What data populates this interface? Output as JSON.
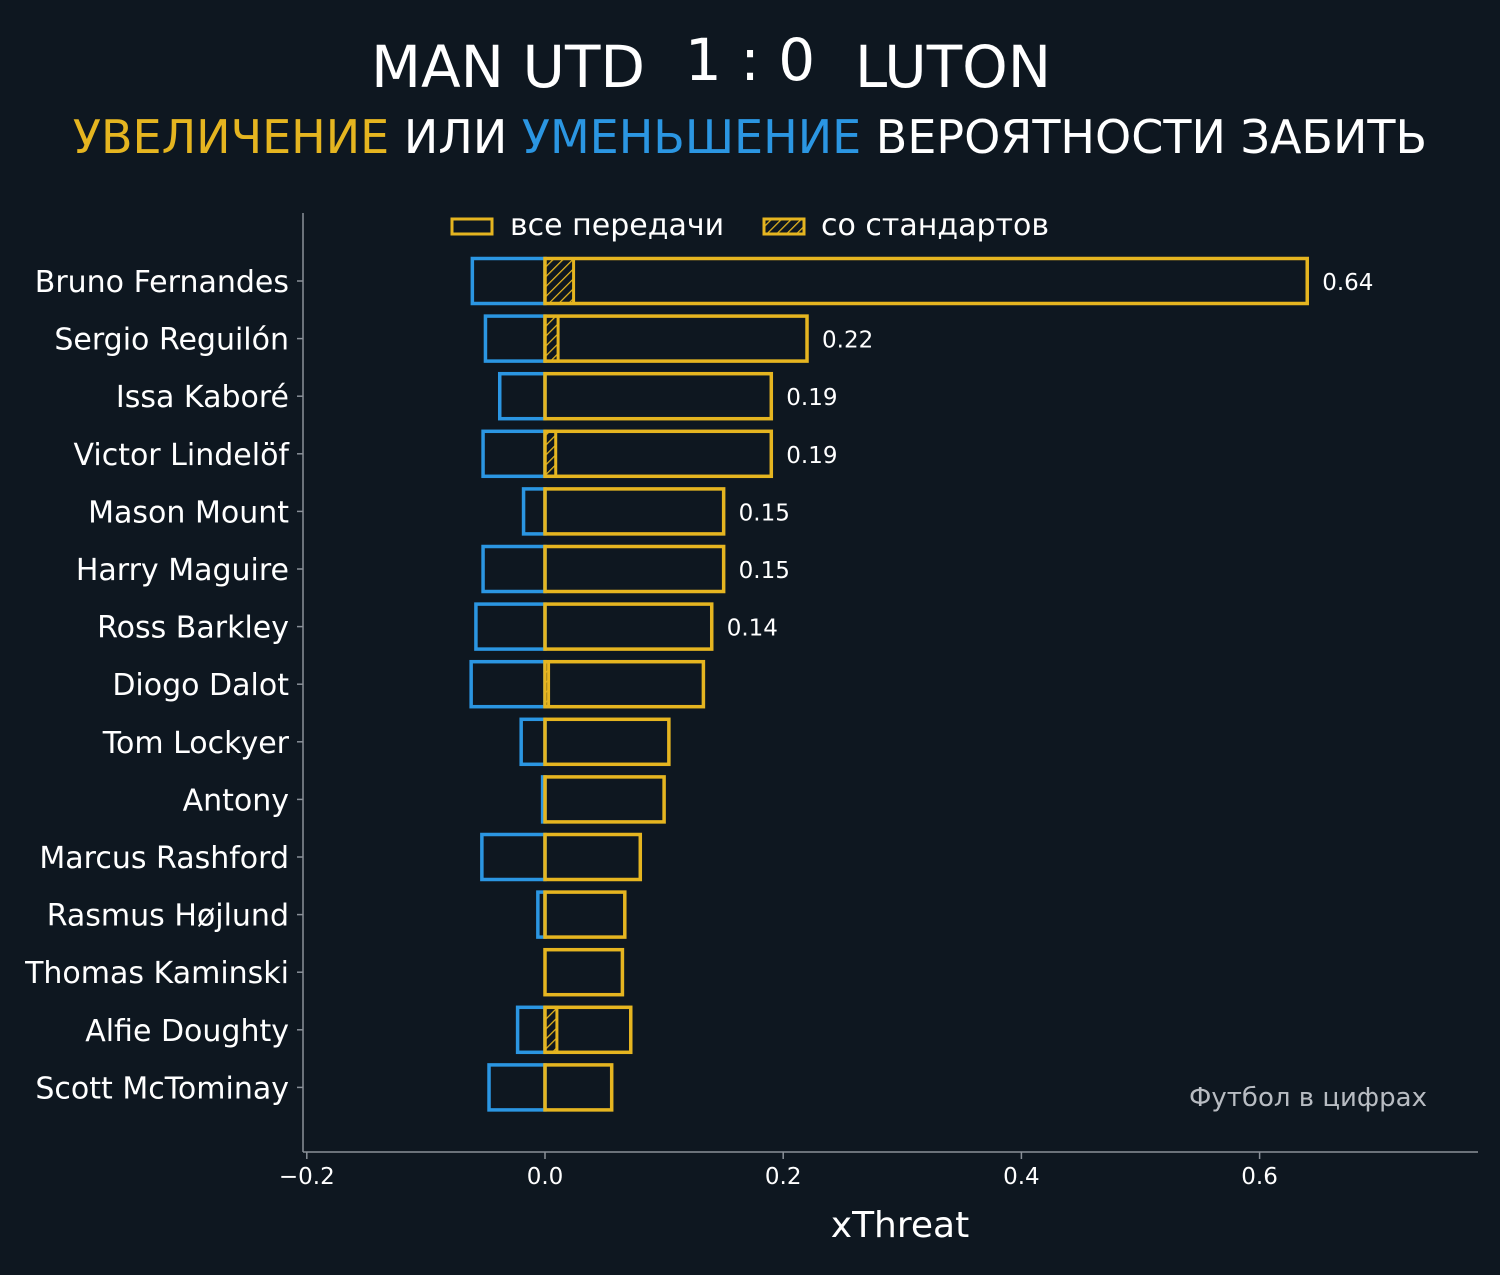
{
  "header": {
    "home_team": "MAN UTD",
    "score": "1 : 0",
    "away_team": "LUTON",
    "subtitle_increase": "УВЕЛИЧЕНИЕ",
    "subtitle_or": "ИЛИ",
    "subtitle_decrease": "УМЕНЬШЕНИЕ",
    "subtitle_rest": "ВЕРОЯТНОСТИ ЗАБИТЬ"
  },
  "legend": {
    "all_passes": "все передачи",
    "set_pieces": "со стандартов"
  },
  "watermark": "Футбол в цифрах",
  "colors": {
    "background": "#0e1720",
    "increase": "#e5b520",
    "decrease": "#2b96e2",
    "text": "#ffffff",
    "axis": "#8a9098"
  },
  "chart_data": {
    "type": "bar",
    "orientation": "horizontal",
    "xlabel": "xThreat",
    "xlim": [
      -0.2,
      0.78
    ],
    "xticks": [
      -0.2,
      0.0,
      0.2,
      0.4,
      0.6
    ],
    "xtick_labels": [
      "−0.2",
      "0.0",
      "0.2",
      "0.4",
      "0.6"
    ],
    "categories": [
      "Bruno Fernandes",
      "Sergio Reguilón",
      "Issa Kaboré",
      "Victor Lindelöf",
      "Mason Mount",
      "Harry Maguire",
      "Ross Barkley",
      "Diogo Dalot",
      "Tom Lockyer",
      "Antony",
      "Marcus Rashford",
      "Rasmus Højlund",
      "Thomas Kaminski",
      "Alfie Doughty",
      "Scott McTominay"
    ],
    "series": [
      {
        "name": "все передачи",
        "role": "positive",
        "values": [
          0.64,
          0.22,
          0.19,
          0.19,
          0.15,
          0.15,
          0.14,
          0.133,
          0.104,
          0.1,
          0.08,
          0.067,
          0.065,
          0.072,
          0.056
        ]
      },
      {
        "role": "negative",
        "values": [
          -0.061,
          -0.05,
          -0.038,
          -0.052,
          -0.018,
          -0.052,
          -0.058,
          -0.062,
          -0.02,
          -0.002,
          -0.053,
          -0.006,
          0.0,
          -0.023,
          -0.047
        ]
      },
      {
        "name": "со стандартов",
        "role": "set_pieces",
        "values": [
          0.024,
          0.011,
          0.0,
          0.009,
          0.0,
          0.0,
          0.0,
          0.003,
          0.0,
          0.0,
          0.0,
          0.0,
          0.0,
          0.01,
          0.0
        ]
      }
    ],
    "value_labels": [
      "0.64",
      "0.22",
      "0.19",
      "0.19",
      "0.15",
      "0.15",
      "0.14",
      "",
      "",
      "",
      "",
      "",
      "",
      "",
      ""
    ]
  }
}
